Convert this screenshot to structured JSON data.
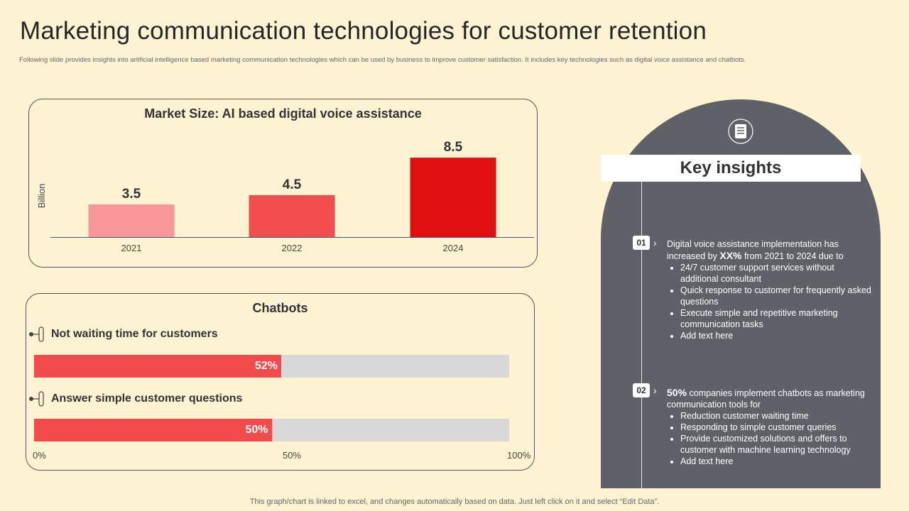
{
  "page": {
    "title": "Marketing communication technologies for customer retention",
    "subtitle": "Following slide provides insights into artificial intelligence based marketing communication technologies which can be used by business to improve customer satisfaction. It includes key technologies such as digital voice assistance and chatbots.",
    "footer": "This graph/chart is linked to excel,  and changes automatically based on data. Just left click on it and select “Edit Data”."
  },
  "chart_data": [
    {
      "type": "bar",
      "title": "Market Size: AI based digital voice assistance",
      "ylabel": "Billion",
      "xlabel": "",
      "categories": [
        "2021",
        "2022",
        "2024"
      ],
      "values": [
        3.5,
        4.5,
        8.5
      ],
      "ylim": [
        0,
        9.5
      ],
      "colors": [
        "#f7979a",
        "#f24e4e",
        "#e01010"
      ],
      "grid": false
    },
    {
      "type": "bar",
      "orientation": "horizontal",
      "title": "Chatbots",
      "categories": [
        "Not waiting time for customers",
        "Answer simple customer questions"
      ],
      "values": [
        52,
        50
      ],
      "value_labels": [
        "52%",
        "50%"
      ],
      "xlim": [
        0,
        100
      ],
      "x_ticks": [
        "0%",
        "50%",
        "100%"
      ],
      "colors": {
        "fill": "#f14b4b",
        "track": "#d8d8d8"
      }
    }
  ],
  "insights": {
    "header": "Key insights",
    "icon": "document-list-icon",
    "items": [
      {
        "number": "01",
        "lead_pre": "Digital voice assistance implementation has increased by ",
        "lead_bold": "XX%",
        "lead_post": " from 2021 to 2024 due to",
        "bullets": [
          "24/7 customer support services without additional consultant",
          "Quick response to customer for frequently asked questions",
          "Execute simple and repetitive  marketing communication tasks",
          "Add text here"
        ]
      },
      {
        "number": "02",
        "lead_bold": "50%",
        "lead_post": " companies implement chatbots as marketing communication tools for",
        "bullets": [
          "Reduction customer waiting time",
          "Responding to simple customer queries",
          "Provide  customized solutions and offers to customer with machine learning technology",
          "Add text here"
        ]
      }
    ]
  }
}
